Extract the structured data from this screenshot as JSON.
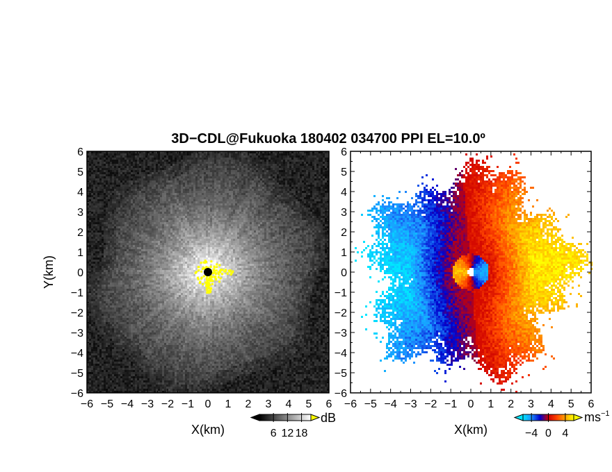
{
  "chart_data": {
    "title": "3D−CDL@Fukuoka 180402 034700 PPI EL=10.0º",
    "panels": [
      {
        "type": "heatmap",
        "quantity": "backscatter intensity",
        "xlabel": "X(km)",
        "ylabel": "Y(km)",
        "xlim": [
          -6,
          6
        ],
        "ylim": [
          -6,
          6
        ],
        "xticks": [
          "−6",
          "−5",
          "−4",
          "−3",
          "−2",
          "−1",
          "0",
          "1",
          "2",
          "3",
          "4",
          "5",
          "6"
        ],
        "yticks": [
          "6",
          "5",
          "4",
          "3",
          "2",
          "1",
          "0",
          "−1",
          "−2",
          "−3",
          "−4",
          "−5",
          "−6"
        ],
        "colorbar": {
          "unit": "dB",
          "ticks": [
            "6",
            "12",
            "18"
          ],
          "tick_values": [
            6,
            12,
            18
          ],
          "range": [
            0,
            22
          ],
          "colors": [
            "#000000",
            "#ffffff"
          ],
          "extend_high_color": "#ffff00"
        },
        "data_radius_km": 5.8
      },
      {
        "type": "heatmap",
        "quantity": "Doppler velocity",
        "xlabel": "X(km)",
        "ylabel": "",
        "xlim": [
          -6,
          6
        ],
        "ylim": [
          -6,
          6
        ],
        "xticks": [
          "−6",
          "−5",
          "−4",
          "−3",
          "−2",
          "−1",
          "0",
          "1",
          "2",
          "3",
          "4",
          "5",
          "6"
        ],
        "yticks": [
          "6",
          "5",
          "4",
          "3",
          "2",
          "1",
          "0",
          "−1",
          "−2",
          "−3",
          "−4",
          "−5",
          "−6"
        ],
        "colorbar": {
          "unit": "ms",
          "unit_exponent": "−1",
          "ticks": [
            "−4",
            "0",
            "4"
          ],
          "tick_values": [
            -4,
            0,
            4
          ],
          "range": [
            -6,
            6
          ],
          "colors": [
            "#00e5ff",
            "#1e90ff",
            "#0000cd",
            "#cd0000",
            "#ff4500",
            "#ffa500",
            "#ffff00"
          ]
        },
        "data_radius_km": 5.3
      }
    ]
  }
}
